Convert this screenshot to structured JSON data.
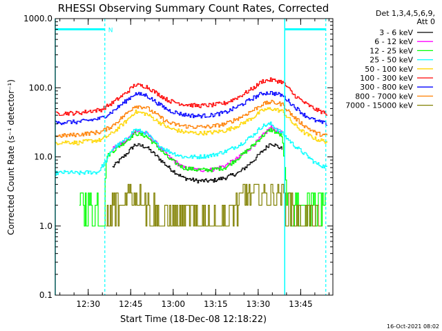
{
  "chart_data": {
    "type": "line",
    "title": "RHESSI Observing Summary Count Rates, Corrected",
    "xlabel": "Start Time (18-Dec-08 12:18:22)",
    "ylabel": "Corrected Count Rate (s⁻¹ detector⁻¹)",
    "yscale": "log",
    "ylim": [
      0.1,
      1000
    ],
    "xlim_minutes": [
      0,
      57
    ],
    "y_ticks": [
      {
        "value": 0.1,
        "label": "0.1"
      },
      {
        "value": 1,
        "label": "1.0"
      },
      {
        "value": 10,
        "label": "10.0"
      },
      {
        "value": 100,
        "label": "100.0"
      },
      {
        "value": 1000,
        "label": "1000.0"
      }
    ],
    "x_ticks": [
      {
        "minute": 11.63,
        "label": "12:30"
      },
      {
        "minute": 26.63,
        "label": "12:45"
      },
      {
        "minute": 41.63,
        "label": "13:00"
      },
      {
        "minute": 56.63,
        "label": "13:15"
      },
      {
        "minute": 71.63,
        "label": "13:30"
      },
      {
        "minute": 86.63,
        "label": "13:45"
      }
    ],
    "xlim": [
      0,
      98
    ],
    "legend_header": [
      "Det 1,3,4,5,6,9,",
      "Att 0"
    ],
    "footer_timestamp": "16-Oct-2021 08:02",
    "night_label": "N",
    "markers": {
      "cyan_solid": [
        0,
        81
      ],
      "cyan_dashed": [
        17.5,
        95.5
      ],
      "night_bars": [
        [
          0,
          17.5
        ],
        [
          81,
          95.5
        ]
      ],
      "night_bar_level": 700
    },
    "series": [
      {
        "name": "3 - 6 keV",
        "color": "#000000",
        "x": [
          10,
          15,
          20,
          25,
          28,
          32,
          36,
          40,
          45,
          50,
          55,
          60,
          65,
          70,
          73,
          76,
          80,
          84,
          88,
          92,
          96
        ],
        "values": [
          null,
          null,
          7,
          11,
          15,
          14,
          10,
          7,
          5,
          4.5,
          4.5,
          5,
          6,
          9,
          12,
          16,
          13,
          null,
          null,
          null,
          null
        ]
      },
      {
        "name": "6 - 12 keV",
        "color": "#ff00ff",
        "x": [
          10,
          15,
          20,
          25,
          28,
          32,
          36,
          40,
          45,
          50,
          55,
          60,
          65,
          70,
          73,
          76,
          80,
          84,
          88,
          92,
          96
        ],
        "values": [
          null,
          null,
          13,
          17,
          24,
          22,
          15,
          10,
          7,
          6.5,
          6.5,
          7.5,
          10,
          15,
          20,
          27,
          22,
          null,
          null,
          null,
          null
        ]
      },
      {
        "name": "12 - 25 keV",
        "color": "#00ff00",
        "x": [
          8.5,
          9.5,
          10.5,
          12,
          14,
          16,
          17,
          18,
          20,
          25,
          28,
          32,
          36,
          40,
          45,
          50,
          55,
          60,
          65,
          70,
          73,
          76,
          80,
          82,
          84,
          86,
          88,
          90,
          92,
          94,
          96
        ],
        "values": [
          1.5,
          2,
          1.5,
          2,
          1.5,
          2,
          1.5,
          10,
          12,
          17,
          22,
          20,
          14,
          9.5,
          7,
          6.5,
          6.5,
          7,
          10,
          15,
          20,
          25,
          20,
          2,
          1.5,
          2,
          1.5,
          2,
          1.5,
          2,
          1.5
        ]
      },
      {
        "name": "25 - 50 keV",
        "color": "#00ffff",
        "x": [
          0,
          4,
          8,
          12,
          15,
          18,
          20,
          25,
          28,
          32,
          36,
          40,
          45,
          50,
          55,
          60,
          65,
          70,
          73,
          76,
          80,
          84,
          88,
          92,
          96
        ],
        "values": [
          5.8,
          6,
          5.8,
          6,
          6,
          9,
          13,
          18,
          25,
          22,
          15,
          12,
          10,
          10,
          10.5,
          12,
          15,
          21,
          28,
          30,
          22,
          15,
          11,
          8,
          7
        ]
      },
      {
        "name": "50 - 100 keV",
        "color": "#ffd700",
        "x": [
          0,
          4,
          8,
          12,
          16,
          20,
          25,
          28,
          32,
          36,
          40,
          45,
          50,
          55,
          60,
          65,
          70,
          73,
          76,
          80,
          84,
          88,
          92,
          96
        ],
        "values": [
          16,
          16.5,
          16,
          17,
          17.5,
          22,
          33,
          45,
          42,
          33,
          26,
          23,
          22,
          22.5,
          24,
          29,
          38,
          47,
          50,
          46,
          30,
          22,
          18,
          16.5
        ]
      },
      {
        "name": "100 - 300 keV",
        "color": "#ff0000",
        "x": [
          0,
          4,
          8,
          12,
          16,
          20,
          25,
          28,
          32,
          36,
          40,
          45,
          50,
          55,
          60,
          65,
          70,
          73,
          76,
          80,
          82,
          84,
          88,
          92,
          96
        ],
        "values": [
          42,
          43,
          43,
          46,
          48,
          60,
          85,
          110,
          105,
          82,
          65,
          58,
          55,
          56,
          60,
          75,
          100,
          125,
          130,
          122,
          100,
          80,
          60,
          48,
          42
        ]
      },
      {
        "name": "300 - 800 keV",
        "color": "#0000ff",
        "x": [
          0,
          4,
          8,
          12,
          16,
          20,
          25,
          28,
          32,
          36,
          40,
          45,
          50,
          55,
          60,
          65,
          70,
          73,
          76,
          80,
          84,
          88,
          92,
          96
        ],
        "values": [
          31,
          32,
          32,
          34,
          36,
          45,
          65,
          82,
          78,
          60,
          47,
          41,
          39,
          40,
          44,
          55,
          72,
          83,
          85,
          78,
          55,
          40,
          33,
          30
        ]
      },
      {
        "name": "800 - 7000 keV",
        "color": "#ff7f00",
        "x": [
          0,
          4,
          8,
          12,
          16,
          20,
          25,
          28,
          32,
          36,
          40,
          45,
          50,
          55,
          60,
          65,
          70,
          73,
          76,
          80,
          84,
          88,
          92,
          96
        ],
        "values": [
          20,
          20.5,
          21,
          22,
          23,
          28,
          42,
          55,
          52,
          40,
          31,
          28,
          27,
          27.5,
          30,
          37,
          48,
          58,
          62,
          58,
          38,
          28,
          22,
          20
        ]
      },
      {
        "name": "7000 - 15000 keV",
        "color": "#808000",
        "x": [
          18,
          21,
          24,
          26,
          28,
          30,
          32,
          34,
          36,
          40,
          45,
          50,
          55,
          60,
          62,
          64,
          66,
          68,
          70,
          72,
          74,
          76,
          78,
          80,
          82,
          84,
          86,
          88,
          90,
          92,
          94
        ],
        "values": [
          1,
          2,
          2.5,
          3.5,
          3,
          3.5,
          2.5,
          2,
          1,
          1,
          1,
          1,
          1,
          1,
          1.5,
          2,
          2.5,
          3,
          3.5,
          3,
          3.5,
          3,
          3.5,
          3,
          2,
          1.5,
          1.2,
          1.5,
          1,
          1.5,
          1
        ]
      }
    ]
  }
}
